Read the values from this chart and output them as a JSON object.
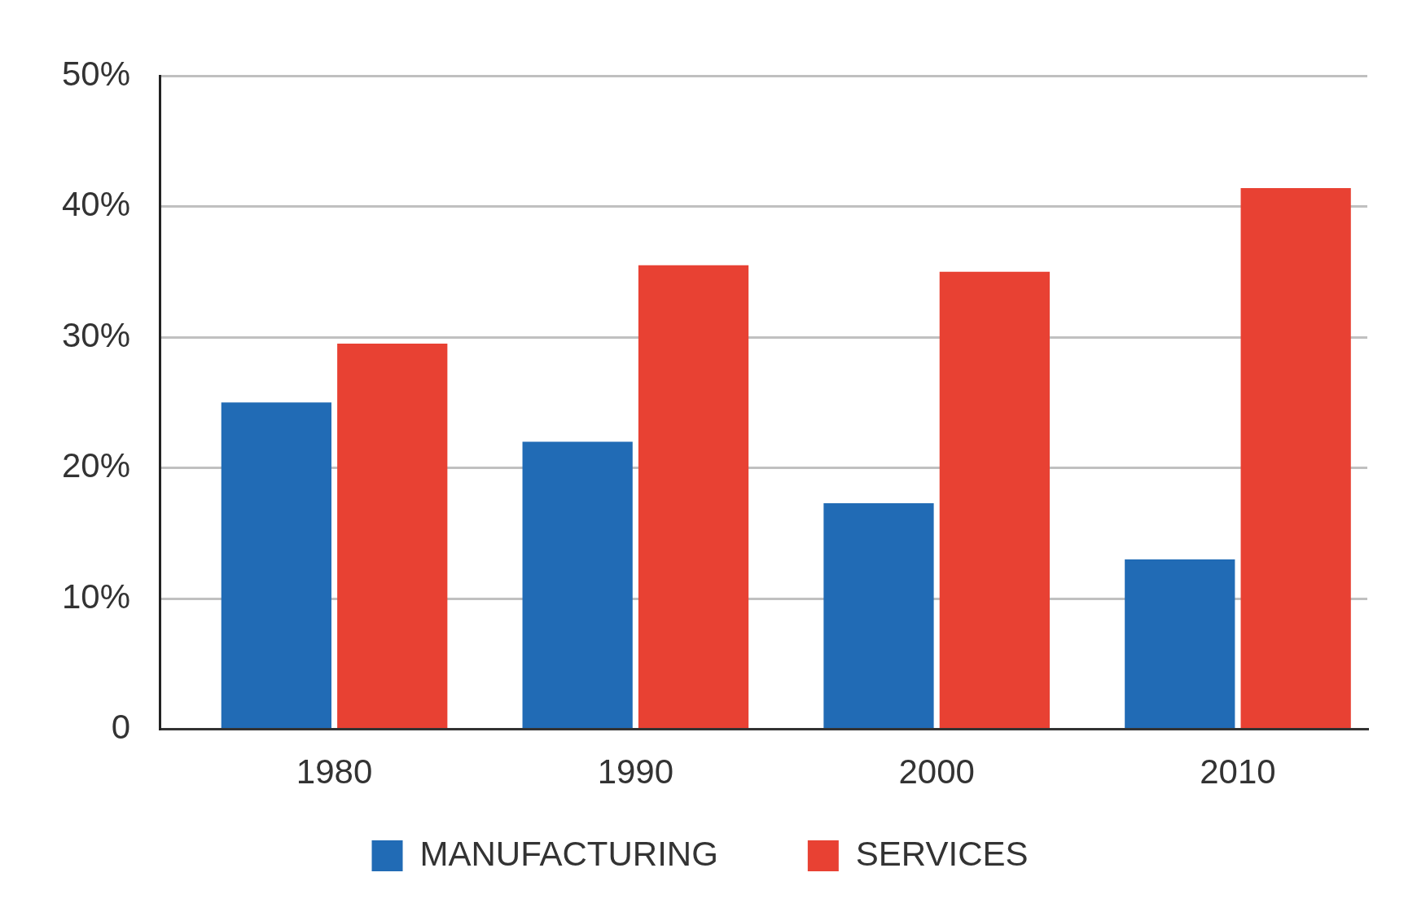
{
  "chart_data": {
    "type": "bar",
    "categories": [
      "1980",
      "1990",
      "2000",
      "2010"
    ],
    "series": [
      {
        "name": "MANUFACTURING",
        "color": "#216bb5",
        "values": [
          25,
          22,
          17.3,
          13
        ]
      },
      {
        "name": "SERVICES",
        "color": "#e84133",
        "values": [
          29.5,
          35.5,
          35,
          41.4
        ]
      }
    ],
    "ylim": [
      0,
      50
    ],
    "yticks": [
      0,
      {
        "value": 10,
        "label": "10%"
      },
      {
        "value": 20,
        "label": "20%"
      },
      {
        "value": 30,
        "label": "30%"
      },
      {
        "value": 40,
        "label": "40%"
      },
      {
        "value": 50,
        "label": "50%"
      }
    ],
    "grid": "y",
    "legend": "bottom"
  }
}
